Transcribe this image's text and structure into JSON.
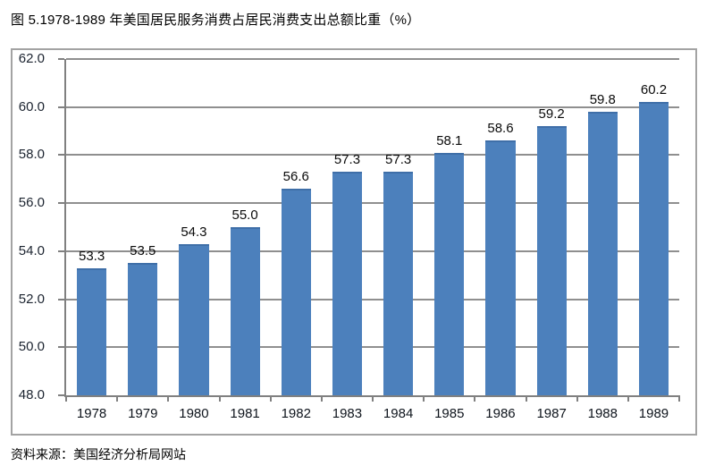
{
  "figure": {
    "title": "图 5.1978-1989 年美国居民服务消费占居民消费支出总额比重（%）",
    "source_note": "资料来源：美国经济分析局网站"
  },
  "chart_data": {
    "type": "bar",
    "title": "图 5.1978-1989 年美国居民服务消费占居民消费支出总额比重（%）",
    "categories": [
      "1978",
      "1979",
      "1980",
      "1981",
      "1982",
      "1983",
      "1984",
      "1985",
      "1986",
      "1987",
      "1988",
      "1989"
    ],
    "values": [
      53.3,
      53.5,
      54.3,
      55.0,
      56.6,
      57.3,
      57.3,
      58.1,
      58.6,
      59.2,
      59.8,
      60.2
    ],
    "value_labels": [
      "53.3",
      "53.5",
      "54.3",
      "55.0",
      "56.6",
      "57.3",
      "57.3",
      "58.1",
      "58.6",
      "59.2",
      "59.8",
      "60.2"
    ],
    "xlabel": "",
    "ylabel": "",
    "ylim": [
      48.0,
      62.0
    ],
    "ytick_step": 2.0,
    "yticks": [
      "48.0",
      "50.0",
      "52.0",
      "54.0",
      "56.0",
      "58.0",
      "60.0",
      "62.0"
    ],
    "grid": "horizontal",
    "legend": "none",
    "data_labels": "above-bars",
    "source_note": "资料来源：美国经济分析局网站",
    "colors": {
      "bar": "#4c80bc",
      "bar_border": "#3f6fa8",
      "gridline": "#8f8f8f",
      "axis": "#808080",
      "chart_border": "#a3a3a3",
      "background": "#ffffff"
    }
  }
}
